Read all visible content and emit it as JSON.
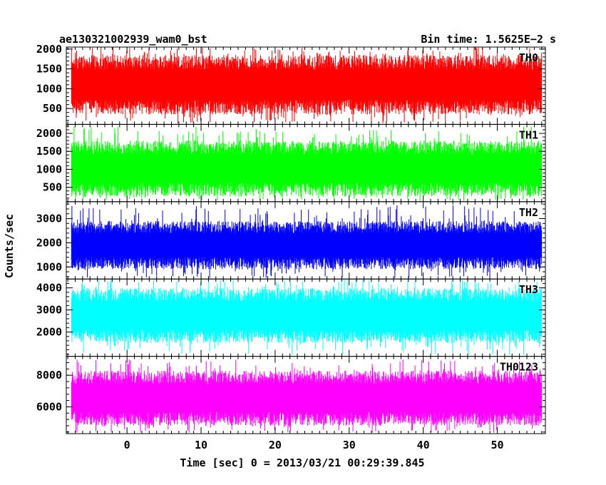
{
  "header": {
    "title_left": "ae130321002939_wam0_bst",
    "title_right": "Bin time: 1.5625E−2 s"
  },
  "axes": {
    "ylabel": "Counts/sec",
    "xlabel": "Time [sec] 0 = 2013/03/21 00:29:39.845",
    "x_ticks": [
      0,
      10,
      20,
      30,
      40,
      50
    ],
    "xlim": [
      -8.2,
      56.5
    ]
  },
  "chart_data": [
    {
      "type": "line",
      "name": "TH0",
      "color": "#ff0000",
      "ylim": [
        100,
        2050
      ],
      "y_ticks": [
        500,
        1000,
        1500,
        2000
      ],
      "x_range": [
        -7.5,
        56
      ],
      "approx_level": [
        350,
        1850
      ],
      "spike_max": 2050
    },
    {
      "type": "line",
      "name": "TH1",
      "color": "#00ff00",
      "ylim": [
        100,
        2250
      ],
      "y_ticks": [
        500,
        1000,
        1500,
        2000
      ],
      "x_range": [
        -7.5,
        56
      ],
      "approx_level": [
        250,
        1800
      ],
      "spike_max": 2200
    },
    {
      "type": "line",
      "name": "TH2",
      "color": "#0000ff",
      "ylim": [
        500,
        3700
      ],
      "y_ticks": [
        1000,
        2000,
        3000
      ],
      "x_range": [
        -7.5,
        56
      ],
      "approx_level": [
        900,
        2900
      ],
      "spike_max": 3550
    },
    {
      "type": "line",
      "name": "TH3",
      "color": "#00ffff",
      "ylim": [
        900,
        4400
      ],
      "y_ticks": [
        2000,
        3000,
        4000
      ],
      "x_range": [
        -7.5,
        56
      ],
      "approx_level": [
        1500,
        4000
      ],
      "spike_max": 4400
    },
    {
      "type": "line",
      "name": "TH0123",
      "color": "#ff00ff",
      "ylim": [
        4300,
        9200
      ],
      "y_ticks": [
        6000,
        8000
      ],
      "x_range": [
        -7.5,
        56
      ],
      "approx_level": [
        4800,
        8300
      ],
      "spike_max": 9000
    }
  ]
}
